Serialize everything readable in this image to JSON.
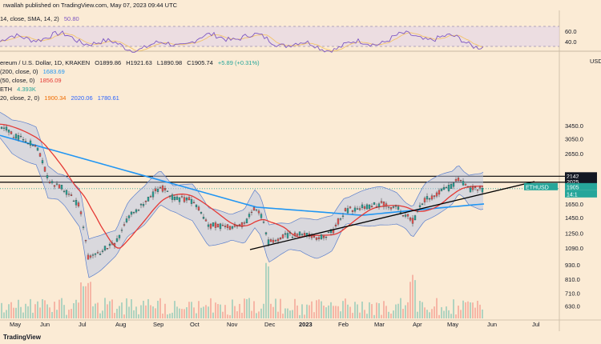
{
  "header": {
    "published_by": "nwallah published on TradingView.com, May 07, 2023 09:44 UTC"
  },
  "rsi": {
    "label": "14, close, SMA, 14, 2)",
    "value": "50.80",
    "levels": [
      "60.0",
      "40.0"
    ]
  },
  "legend": {
    "symbol_line": "ereum / U.S. Dollar, 1D, KRAKEN",
    "open": "O1899.86",
    "high": "H1921.63",
    "low": "L1890.98",
    "close": "C1905.74",
    "change": "+5.89 (+0.31%)",
    "ma200_label": "(200, close, 0)",
    "ma200_value": "1683.69",
    "ma50_label": "(50, close, 0)",
    "ma50_value": "1856.09",
    "vol_label": "ETH",
    "vol_value": "4.393K",
    "bb_label": "20, close, 2, 0)",
    "bb_mid": "1900.34",
    "bb_upper": "2020.06",
    "bb_lower": "1780.61"
  },
  "axis": {
    "currency": "USD",
    "price_ticks": [
      "3450.0",
      "3050.0",
      "2650.0",
      "1650.0",
      "1450.0",
      "1250.0",
      "1090.0",
      "930.0",
      "810.0",
      "710.0",
      "630.0"
    ],
    "right_tags": [
      "2142",
      "2025",
      "1905",
      "ETHUSD",
      "14:1"
    ],
    "months": [
      "May",
      "Jun",
      "Jul",
      "Aug",
      "Sep",
      "Oct",
      "Nov",
      "Dec",
      "2023",
      "Feb",
      "Mar",
      "Apr",
      "May",
      "Jun",
      "Jul"
    ]
  },
  "footer": {
    "brand": "TradingView"
  },
  "colors": {
    "background": "#fbebd5",
    "up": "#26a69a",
    "down": "#ef5350",
    "ma200": "#2196f3",
    "ma50": "#e53935",
    "bb_fill": "#b7c6e6",
    "bb_line": "#5b7fcc",
    "rsi": "#7e57c2",
    "trend": "#000000"
  },
  "chart_data": {
    "type": "line",
    "title": "",
    "xlabel": "",
    "ylabel": "",
    "scale": "log",
    "ylim": [
      560,
      4300
    ],
    "x": [
      "2022-04",
      "2022-05",
      "2022-06",
      "2022-07",
      "2022-08",
      "2022-09",
      "2022-10",
      "2022-11",
      "2022-12",
      "2023-01",
      "2023-02",
      "2023-03",
      "2023-04",
      "2023-05"
    ],
    "series": [
      {
        "name": "ETH",
        "values": [
          3000,
          2700,
          1700,
          1400,
          1850,
          1450,
          1330,
          1250,
          1200,
          1550,
          1600,
          1750,
          2050,
          1905
        ]
      }
    ],
    "horizontal_levels": [
      2142,
      2025
    ],
    "last_close": 1905.74
  }
}
